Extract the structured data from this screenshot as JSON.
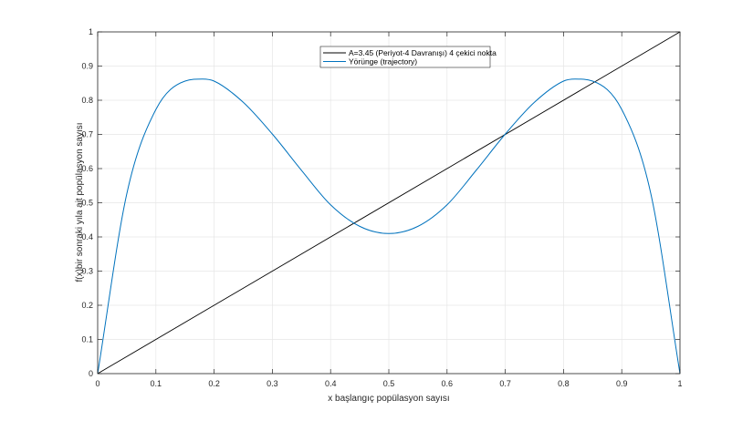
{
  "chart_data": {
    "type": "line",
    "xlabel": "x başlangıç popülasyon sayısı",
    "ylabel": "f(x)bir sonraki yıla ait popülasyon sayısı",
    "xlim": [
      0,
      1
    ],
    "ylim": [
      0,
      1
    ],
    "grid": true,
    "legend_position": "top-center",
    "x_ticks": [
      "0",
      "0.1",
      "0.2",
      "0.3",
      "0.4",
      "0.5",
      "0.6",
      "0.7",
      "0.8",
      "0.9",
      "1"
    ],
    "y_ticks": [
      "0",
      "0.1",
      "0.2",
      "0.3",
      "0.4",
      "0.5",
      "0.6",
      "0.7",
      "0.8",
      "0.9",
      "1"
    ],
    "series": [
      {
        "name": "A=3.45 (Periyot-4 Davranışı) 4 çekici nokta",
        "color": "#000000",
        "x": [
          0,
          1
        ],
        "y": [
          0,
          1
        ]
      },
      {
        "name": "Yörünge (trajectory)",
        "color": "#0072BD",
        "x": [
          0,
          0.05,
          0.1,
          0.15,
          0.18,
          0.2,
          0.25,
          0.3,
          0.35,
          0.4,
          0.45,
          0.5,
          0.55,
          0.6,
          0.65,
          0.7,
          0.75,
          0.8,
          0.82,
          0.85,
          0.9,
          0.95,
          1
        ],
        "y": [
          0,
          0.526,
          0.773,
          0.856,
          0.862,
          0.856,
          0.794,
          0.701,
          0.595,
          0.494,
          0.431,
          0.41,
          0.431,
          0.494,
          0.595,
          0.701,
          0.794,
          0.856,
          0.862,
          0.856,
          0.773,
          0.526,
          0
        ]
      }
    ]
  }
}
